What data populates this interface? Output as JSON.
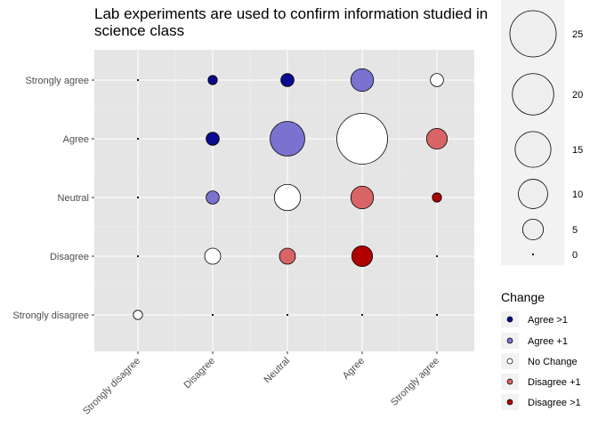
{
  "chart_data": {
    "type": "scatter",
    "title_lines": [
      "Lab experiments are used to confirm information studied in",
      "science class"
    ],
    "x_categories": [
      "Strongly disagree",
      "Disagree",
      "Neutral",
      "Agree",
      "Strongly agree"
    ],
    "y_categories": [
      "Strongly disagree",
      "Disagree",
      "Neutral",
      "Agree",
      "Strongly agree"
    ],
    "size_legend": {
      "values": [
        25,
        20,
        15,
        10,
        5,
        0
      ]
    },
    "color_legend": {
      "title": "Change",
      "items": [
        {
          "label": "Agree >1",
          "color": "#0b0a8f"
        },
        {
          "label": "Agree +1",
          "color": "#7a72cf"
        },
        {
          "label": "No Change",
          "color": "#ffffff"
        },
        {
          "label": "Disagree +1",
          "color": "#d86466"
        },
        {
          "label": "Disagree >1",
          "color": "#b00000"
        }
      ]
    },
    "points": [
      {
        "x": "Strongly disagree",
        "y": "Strongly disagree",
        "count": 1,
        "change": "No Change"
      },
      {
        "x": "Strongly disagree",
        "y": "Disagree",
        "count": 0,
        "change": "Agree +1"
      },
      {
        "x": "Strongly disagree",
        "y": "Neutral",
        "count": 0,
        "change": "Agree >1"
      },
      {
        "x": "Strongly disagree",
        "y": "Agree",
        "count": 0,
        "change": "Agree >1"
      },
      {
        "x": "Strongly disagree",
        "y": "Strongly agree",
        "count": 0,
        "change": "Agree >1"
      },
      {
        "x": "Disagree",
        "y": "Strongly disagree",
        "count": 0,
        "change": "Disagree +1"
      },
      {
        "x": "Disagree",
        "y": "Disagree",
        "count": 3,
        "change": "No Change"
      },
      {
        "x": "Disagree",
        "y": "Neutral",
        "count": 2,
        "change": "Agree +1"
      },
      {
        "x": "Disagree",
        "y": "Agree",
        "count": 2,
        "change": "Agree >1"
      },
      {
        "x": "Disagree",
        "y": "Strongly agree",
        "count": 1,
        "change": "Agree >1"
      },
      {
        "x": "Neutral",
        "y": "Strongly disagree",
        "count": 0,
        "change": "Disagree >1"
      },
      {
        "x": "Neutral",
        "y": "Disagree",
        "count": 3,
        "change": "Disagree +1"
      },
      {
        "x": "Neutral",
        "y": "Neutral",
        "count": 8,
        "change": "No Change"
      },
      {
        "x": "Neutral",
        "y": "Agree",
        "count": 14,
        "change": "Agree +1"
      },
      {
        "x": "Neutral",
        "y": "Strongly agree",
        "count": 2,
        "change": "Agree >1"
      },
      {
        "x": "Agree",
        "y": "Strongly disagree",
        "count": 0,
        "change": "Disagree >1"
      },
      {
        "x": "Agree",
        "y": "Disagree",
        "count": 5,
        "change": "Disagree >1"
      },
      {
        "x": "Agree",
        "y": "Neutral",
        "count": 6,
        "change": "Disagree +1"
      },
      {
        "x": "Agree",
        "y": "Agree",
        "count": 30,
        "change": "No Change"
      },
      {
        "x": "Agree",
        "y": "Strongly agree",
        "count": 6,
        "change": "Agree +1"
      },
      {
        "x": "Strongly agree",
        "y": "Strongly disagree",
        "count": 0,
        "change": "Disagree >1"
      },
      {
        "x": "Strongly agree",
        "y": "Disagree",
        "count": 0,
        "change": "Disagree >1"
      },
      {
        "x": "Strongly agree",
        "y": "Neutral",
        "count": 1,
        "change": "Disagree >1"
      },
      {
        "x": "Strongly agree",
        "y": "Agree",
        "count": 5,
        "change": "Disagree +1"
      },
      {
        "x": "Strongly agree",
        "y": "Strongly agree",
        "count": 2,
        "change": "No Change"
      }
    ],
    "grid": true
  }
}
